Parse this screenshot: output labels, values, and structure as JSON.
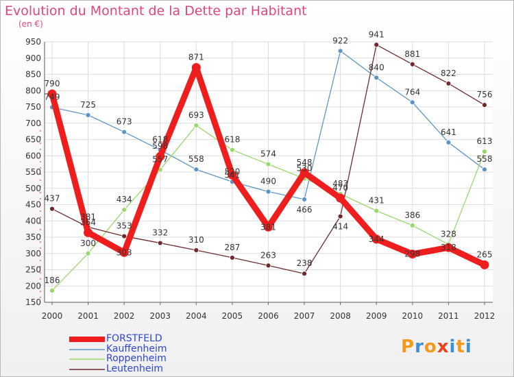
{
  "header": {
    "title": "Evolution du Montant de la Dette par Habitant",
    "unit": "(en €)"
  },
  "logo": {
    "text": "Proxiti",
    "colors": [
      "#f39a1c",
      "#3d8fd6",
      "#f39a1c",
      "#e8431f",
      "#3d8fd6",
      "#f39a1c",
      "#3d8fd6"
    ]
  },
  "chart_data": {
    "type": "line",
    "x": [
      "2000",
      "2001",
      "2002",
      "2003",
      "2004",
      "2005",
      "2006",
      "2007",
      "2008",
      "2009",
      "2010",
      "2011",
      "2012"
    ],
    "ylim": [
      150,
      950
    ],
    "yticks": [
      150,
      200,
      250,
      300,
      350,
      400,
      450,
      500,
      550,
      600,
      650,
      700,
      750,
      800,
      850,
      900,
      950
    ],
    "grid": true,
    "legend_position": "bottom-left",
    "series": [
      {
        "name": "Kauffenheim",
        "color": "#5b95c8",
        "values": [
          749,
          725,
          673,
          618,
          558,
          520,
          490,
          466,
          922,
          840,
          764,
          641,
          558
        ]
      },
      {
        "name": "Roppenheim",
        "color": "#98da6a",
        "values": [
          186,
          300,
          434,
          557,
          693,
          618,
          574,
          530,
          483,
          431,
          386,
          328,
          613
        ]
      },
      {
        "name": "Leutenheim",
        "color": "#6e2a2a",
        "values": [
          437,
          381,
          353,
          332,
          310,
          287,
          263,
          238,
          414,
          941,
          881,
          822,
          756
        ]
      },
      {
        "name": "FORSTFELD",
        "color": "#ef1e1e",
        "values": [
          790,
          364,
          303,
          598,
          871,
          541,
          381,
          548,
          470,
          344,
          298,
          318,
          265
        ]
      }
    ],
    "legend_order": [
      "FORSTFELD",
      "Kauffenheim",
      "Roppenheim",
      "Leutenheim"
    ]
  }
}
